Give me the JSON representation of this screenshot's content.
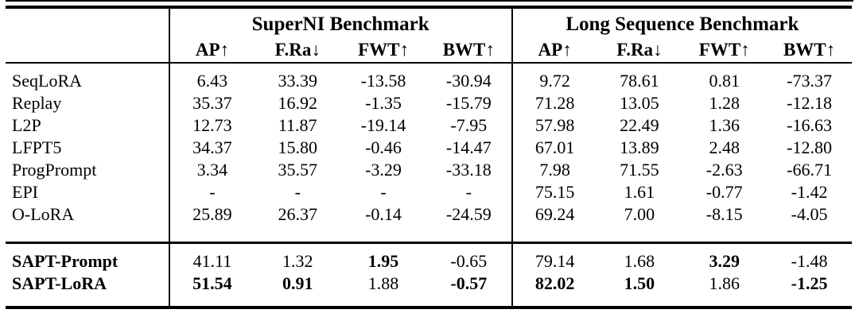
{
  "table": {
    "groups": [
      "SuperNI Benchmark",
      "Long Sequence Benchmark"
    ],
    "sub_headers": [
      "AP↑",
      "F.Ra↓",
      "FWT↑",
      "BWT↑",
      "AP↑",
      "F.Ra↓",
      "FWT↑",
      "BWT↑"
    ],
    "sections": [
      {
        "name": "baselines",
        "rows": [
          {
            "method": "SeqLoRA",
            "method_bold": false,
            "values": [
              "6.43",
              "33.39",
              "-13.58",
              "-30.94",
              "9.72",
              "78.61",
              "0.81",
              "-73.37"
            ],
            "bold": [
              false,
              false,
              false,
              false,
              false,
              false,
              false,
              false
            ]
          },
          {
            "method": "Replay",
            "method_bold": false,
            "values": [
              "35.37",
              "16.92",
              "-1.35",
              "-15.79",
              "71.28",
              "13.05",
              "1.28",
              "-12.18"
            ],
            "bold": [
              false,
              false,
              false,
              false,
              false,
              false,
              false,
              false
            ]
          },
          {
            "method": "L2P",
            "method_bold": false,
            "values": [
              "12.73",
              "11.87",
              "-19.14",
              "-7.95",
              "57.98",
              "22.49",
              "1.36",
              "-16.63"
            ],
            "bold": [
              false,
              false,
              false,
              false,
              false,
              false,
              false,
              false
            ]
          },
          {
            "method": "LFPT5",
            "method_bold": false,
            "values": [
              "34.37",
              "15.80",
              "-0.46",
              "-14.47",
              "67.01",
              "13.89",
              "2.48",
              "-12.80"
            ],
            "bold": [
              false,
              false,
              false,
              false,
              false,
              false,
              false,
              false
            ]
          },
          {
            "method": "ProgPrompt",
            "method_bold": false,
            "values": [
              "3.34",
              "35.57",
              "-3.29",
              "-33.18",
              "7.98",
              "71.55",
              "-2.63",
              "-66.71"
            ],
            "bold": [
              false,
              false,
              false,
              false,
              false,
              false,
              false,
              false
            ]
          },
          {
            "method": "EPI",
            "method_bold": false,
            "values": [
              "-",
              "-",
              "-",
              "-",
              "75.15",
              "1.61",
              "-0.77",
              "-1.42"
            ],
            "bold": [
              false,
              false,
              false,
              false,
              false,
              false,
              false,
              false
            ]
          },
          {
            "method": "O-LoRA",
            "method_bold": false,
            "values": [
              "25.89",
              "26.37",
              "-0.14",
              "-24.59",
              "69.24",
              "7.00",
              "-8.15",
              "-4.05"
            ],
            "bold": [
              false,
              false,
              false,
              false,
              false,
              false,
              false,
              false
            ]
          }
        ]
      },
      {
        "name": "ours",
        "rows": [
          {
            "method": "SAPT-Prompt",
            "method_bold": true,
            "values": [
              "41.11",
              "1.32",
              "1.95",
              "-0.65",
              "79.14",
              "1.68",
              "3.29",
              "-1.48"
            ],
            "bold": [
              false,
              false,
              true,
              false,
              false,
              false,
              true,
              false
            ]
          },
          {
            "method": "SAPT-LoRA",
            "method_bold": true,
            "values": [
              "51.54",
              "0.91",
              "1.88",
              "-0.57",
              "82.02",
              "1.50",
              "1.86",
              "-1.25"
            ],
            "bold": [
              true,
              true,
              false,
              true,
              true,
              true,
              false,
              true
            ]
          }
        ]
      }
    ]
  }
}
